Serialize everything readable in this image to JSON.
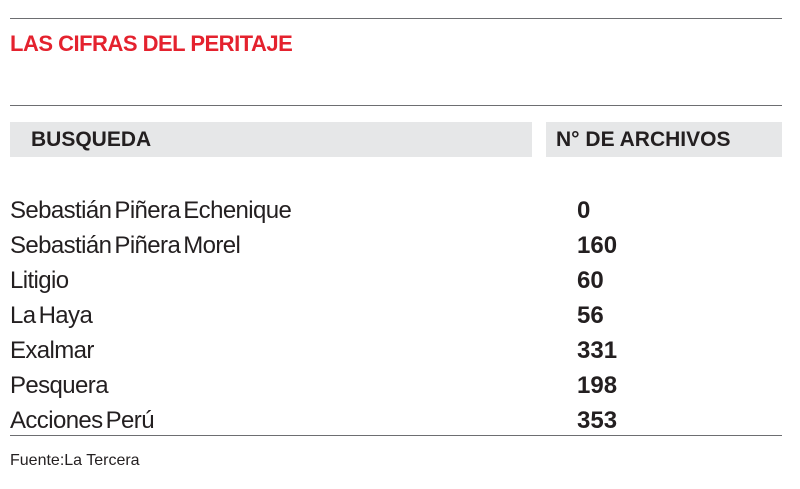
{
  "title": "LAS CIFRAS DEL PERITAJE",
  "table": {
    "columns": [
      "BUSQUEDA",
      "N° DE ARCHIVOS"
    ],
    "rows": [
      {
        "busqueda": "Sebastián Piñera Echenique",
        "archivos": "0"
      },
      {
        "busqueda": "Sebastián Piñera Morel",
        "archivos": "160"
      },
      {
        "busqueda": "Litigio",
        "archivos": "60"
      },
      {
        "busqueda": "La Haya",
        "archivos": "56"
      },
      {
        "busqueda": "Exalmar",
        "archivos": "331"
      },
      {
        "busqueda": "Pesquera",
        "archivos": "198"
      },
      {
        "busqueda": "Acciones Perú",
        "archivos": "353"
      }
    ]
  },
  "source": "Fuente:La Tercera",
  "colors": {
    "accent": "#e4222e",
    "header_bg": "#e6e7e8",
    "text": "#231f20",
    "rule": "#6d6e71"
  }
}
